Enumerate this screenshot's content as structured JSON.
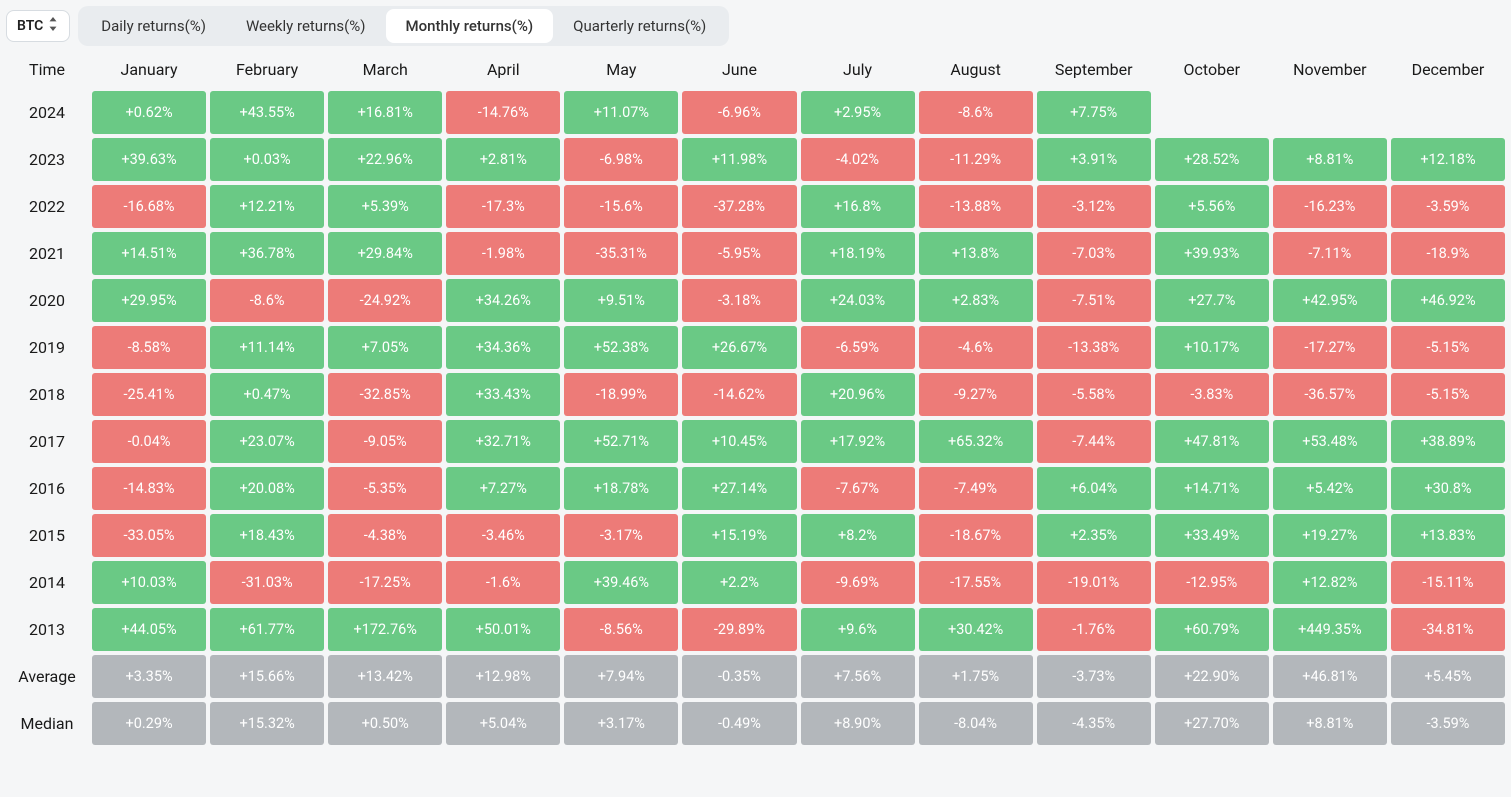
{
  "asset": {
    "selected": "BTC"
  },
  "tabs": [
    {
      "label": "Daily returns(%)",
      "active": false
    },
    {
      "label": "Weekly returns(%)",
      "active": false
    },
    {
      "label": "Monthly returns(%)",
      "active": true
    },
    {
      "label": "Quarterly returns(%)",
      "active": false
    }
  ],
  "table": {
    "time_header": "Time",
    "months": [
      "January",
      "February",
      "March",
      "April",
      "May",
      "June",
      "July",
      "August",
      "September",
      "October",
      "November",
      "December"
    ],
    "colors": {
      "positive": "#6ac985",
      "negative": "#ed7b78",
      "neutral": "#b3b7bb"
    },
    "years": [
      {
        "label": "2024",
        "cells": [
          {
            "v": "+0.62%",
            "s": "pos"
          },
          {
            "v": "+43.55%",
            "s": "pos"
          },
          {
            "v": "+16.81%",
            "s": "pos"
          },
          {
            "v": "-14.76%",
            "s": "neg"
          },
          {
            "v": "+11.07%",
            "s": "pos"
          },
          {
            "v": "-6.96%",
            "s": "neg"
          },
          {
            "v": "+2.95%",
            "s": "pos"
          },
          {
            "v": "-8.6%",
            "s": "neg"
          },
          {
            "v": "+7.75%",
            "s": "pos"
          },
          {
            "v": null,
            "s": null
          },
          {
            "v": null,
            "s": null
          },
          {
            "v": null,
            "s": null
          }
        ]
      },
      {
        "label": "2023",
        "cells": [
          {
            "v": "+39.63%",
            "s": "pos"
          },
          {
            "v": "+0.03%",
            "s": "pos"
          },
          {
            "v": "+22.96%",
            "s": "pos"
          },
          {
            "v": "+2.81%",
            "s": "pos"
          },
          {
            "v": "-6.98%",
            "s": "neg"
          },
          {
            "v": "+11.98%",
            "s": "pos"
          },
          {
            "v": "-4.02%",
            "s": "neg"
          },
          {
            "v": "-11.29%",
            "s": "neg"
          },
          {
            "v": "+3.91%",
            "s": "pos"
          },
          {
            "v": "+28.52%",
            "s": "pos"
          },
          {
            "v": "+8.81%",
            "s": "pos"
          },
          {
            "v": "+12.18%",
            "s": "pos"
          }
        ]
      },
      {
        "label": "2022",
        "cells": [
          {
            "v": "-16.68%",
            "s": "neg"
          },
          {
            "v": "+12.21%",
            "s": "pos"
          },
          {
            "v": "+5.39%",
            "s": "pos"
          },
          {
            "v": "-17.3%",
            "s": "neg"
          },
          {
            "v": "-15.6%",
            "s": "neg"
          },
          {
            "v": "-37.28%",
            "s": "neg"
          },
          {
            "v": "+16.8%",
            "s": "pos"
          },
          {
            "v": "-13.88%",
            "s": "neg"
          },
          {
            "v": "-3.12%",
            "s": "neg"
          },
          {
            "v": "+5.56%",
            "s": "pos"
          },
          {
            "v": "-16.23%",
            "s": "neg"
          },
          {
            "v": "-3.59%",
            "s": "neg"
          }
        ]
      },
      {
        "label": "2021",
        "cells": [
          {
            "v": "+14.51%",
            "s": "pos"
          },
          {
            "v": "+36.78%",
            "s": "pos"
          },
          {
            "v": "+29.84%",
            "s": "pos"
          },
          {
            "v": "-1.98%",
            "s": "neg"
          },
          {
            "v": "-35.31%",
            "s": "neg"
          },
          {
            "v": "-5.95%",
            "s": "neg"
          },
          {
            "v": "+18.19%",
            "s": "pos"
          },
          {
            "v": "+13.8%",
            "s": "pos"
          },
          {
            "v": "-7.03%",
            "s": "neg"
          },
          {
            "v": "+39.93%",
            "s": "pos"
          },
          {
            "v": "-7.11%",
            "s": "neg"
          },
          {
            "v": "-18.9%",
            "s": "neg"
          }
        ]
      },
      {
        "label": "2020",
        "cells": [
          {
            "v": "+29.95%",
            "s": "pos"
          },
          {
            "v": "-8.6%",
            "s": "neg"
          },
          {
            "v": "-24.92%",
            "s": "neg"
          },
          {
            "v": "+34.26%",
            "s": "pos"
          },
          {
            "v": "+9.51%",
            "s": "pos"
          },
          {
            "v": "-3.18%",
            "s": "neg"
          },
          {
            "v": "+24.03%",
            "s": "pos"
          },
          {
            "v": "+2.83%",
            "s": "pos"
          },
          {
            "v": "-7.51%",
            "s": "neg"
          },
          {
            "v": "+27.7%",
            "s": "pos"
          },
          {
            "v": "+42.95%",
            "s": "pos"
          },
          {
            "v": "+46.92%",
            "s": "pos"
          }
        ]
      },
      {
        "label": "2019",
        "cells": [
          {
            "v": "-8.58%",
            "s": "neg"
          },
          {
            "v": "+11.14%",
            "s": "pos"
          },
          {
            "v": "+7.05%",
            "s": "pos"
          },
          {
            "v": "+34.36%",
            "s": "pos"
          },
          {
            "v": "+52.38%",
            "s": "pos"
          },
          {
            "v": "+26.67%",
            "s": "pos"
          },
          {
            "v": "-6.59%",
            "s": "neg"
          },
          {
            "v": "-4.6%",
            "s": "neg"
          },
          {
            "v": "-13.38%",
            "s": "neg"
          },
          {
            "v": "+10.17%",
            "s": "pos"
          },
          {
            "v": "-17.27%",
            "s": "neg"
          },
          {
            "v": "-5.15%",
            "s": "neg"
          }
        ]
      },
      {
        "label": "2018",
        "cells": [
          {
            "v": "-25.41%",
            "s": "neg"
          },
          {
            "v": "+0.47%",
            "s": "pos"
          },
          {
            "v": "-32.85%",
            "s": "neg"
          },
          {
            "v": "+33.43%",
            "s": "pos"
          },
          {
            "v": "-18.99%",
            "s": "neg"
          },
          {
            "v": "-14.62%",
            "s": "neg"
          },
          {
            "v": "+20.96%",
            "s": "pos"
          },
          {
            "v": "-9.27%",
            "s": "neg"
          },
          {
            "v": "-5.58%",
            "s": "neg"
          },
          {
            "v": "-3.83%",
            "s": "neg"
          },
          {
            "v": "-36.57%",
            "s": "neg"
          },
          {
            "v": "-5.15%",
            "s": "neg"
          }
        ]
      },
      {
        "label": "2017",
        "cells": [
          {
            "v": "-0.04%",
            "s": "neg"
          },
          {
            "v": "+23.07%",
            "s": "pos"
          },
          {
            "v": "-9.05%",
            "s": "neg"
          },
          {
            "v": "+32.71%",
            "s": "pos"
          },
          {
            "v": "+52.71%",
            "s": "pos"
          },
          {
            "v": "+10.45%",
            "s": "pos"
          },
          {
            "v": "+17.92%",
            "s": "pos"
          },
          {
            "v": "+65.32%",
            "s": "pos"
          },
          {
            "v": "-7.44%",
            "s": "neg"
          },
          {
            "v": "+47.81%",
            "s": "pos"
          },
          {
            "v": "+53.48%",
            "s": "pos"
          },
          {
            "v": "+38.89%",
            "s": "pos"
          }
        ]
      },
      {
        "label": "2016",
        "cells": [
          {
            "v": "-14.83%",
            "s": "neg"
          },
          {
            "v": "+20.08%",
            "s": "pos"
          },
          {
            "v": "-5.35%",
            "s": "neg"
          },
          {
            "v": "+7.27%",
            "s": "pos"
          },
          {
            "v": "+18.78%",
            "s": "pos"
          },
          {
            "v": "+27.14%",
            "s": "pos"
          },
          {
            "v": "-7.67%",
            "s": "neg"
          },
          {
            "v": "-7.49%",
            "s": "neg"
          },
          {
            "v": "+6.04%",
            "s": "pos"
          },
          {
            "v": "+14.71%",
            "s": "pos"
          },
          {
            "v": "+5.42%",
            "s": "pos"
          },
          {
            "v": "+30.8%",
            "s": "pos"
          }
        ]
      },
      {
        "label": "2015",
        "cells": [
          {
            "v": "-33.05%",
            "s": "neg"
          },
          {
            "v": "+18.43%",
            "s": "pos"
          },
          {
            "v": "-4.38%",
            "s": "neg"
          },
          {
            "v": "-3.46%",
            "s": "neg"
          },
          {
            "v": "-3.17%",
            "s": "neg"
          },
          {
            "v": "+15.19%",
            "s": "pos"
          },
          {
            "v": "+8.2%",
            "s": "pos"
          },
          {
            "v": "-18.67%",
            "s": "neg"
          },
          {
            "v": "+2.35%",
            "s": "pos"
          },
          {
            "v": "+33.49%",
            "s": "pos"
          },
          {
            "v": "+19.27%",
            "s": "pos"
          },
          {
            "v": "+13.83%",
            "s": "pos"
          }
        ]
      },
      {
        "label": "2014",
        "cells": [
          {
            "v": "+10.03%",
            "s": "pos"
          },
          {
            "v": "-31.03%",
            "s": "neg"
          },
          {
            "v": "-17.25%",
            "s": "neg"
          },
          {
            "v": "-1.6%",
            "s": "neg"
          },
          {
            "v": "+39.46%",
            "s": "pos"
          },
          {
            "v": "+2.2%",
            "s": "pos"
          },
          {
            "v": "-9.69%",
            "s": "neg"
          },
          {
            "v": "-17.55%",
            "s": "neg"
          },
          {
            "v": "-19.01%",
            "s": "neg"
          },
          {
            "v": "-12.95%",
            "s": "neg"
          },
          {
            "v": "+12.82%",
            "s": "pos"
          },
          {
            "v": "-15.11%",
            "s": "neg"
          }
        ]
      },
      {
        "label": "2013",
        "cells": [
          {
            "v": "+44.05%",
            "s": "pos"
          },
          {
            "v": "+61.77%",
            "s": "pos"
          },
          {
            "v": "+172.76%",
            "s": "pos"
          },
          {
            "v": "+50.01%",
            "s": "pos"
          },
          {
            "v": "-8.56%",
            "s": "neg"
          },
          {
            "v": "-29.89%",
            "s": "neg"
          },
          {
            "v": "+9.6%",
            "s": "pos"
          },
          {
            "v": "+30.42%",
            "s": "pos"
          },
          {
            "v": "-1.76%",
            "s": "neg"
          },
          {
            "v": "+60.79%",
            "s": "pos"
          },
          {
            "v": "+449.35%",
            "s": "pos"
          },
          {
            "v": "-34.81%",
            "s": "neg"
          }
        ]
      }
    ],
    "summary": [
      {
        "label": "Average",
        "cells": [
          "+3.35%",
          "+15.66%",
          "+13.42%",
          "+12.98%",
          "+7.94%",
          "-0.35%",
          "+7.56%",
          "+1.75%",
          "-3.73%",
          "+22.90%",
          "+46.81%",
          "+5.45%"
        ]
      },
      {
        "label": "Median",
        "cells": [
          "+0.29%",
          "+15.32%",
          "+0.50%",
          "+5.04%",
          "+3.17%",
          "-0.49%",
          "+8.90%",
          "-8.04%",
          "-4.35%",
          "+27.70%",
          "+8.81%",
          "-3.59%"
        ]
      }
    ]
  }
}
